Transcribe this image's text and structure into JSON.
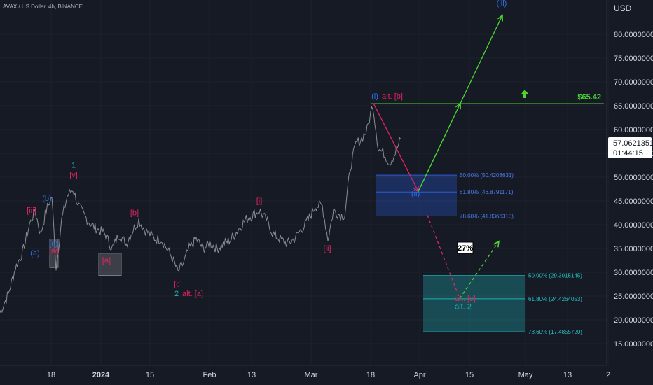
{
  "header": {
    "title": "AVAX / US Dollar, 4h, BINANCE"
  },
  "chart_data": {
    "type": "line",
    "currency_label": "USD",
    "ylim": [
      10,
      87
    ],
    "y_ticks": [
      "15.0000000",
      "20.0000000",
      "25.0000000",
      "30.0000000",
      "35.0000000",
      "40.0000000",
      "45.0000000",
      "50.0000000",
      "55.0000000",
      "60.0000000",
      "65.0000000",
      "70.0000000",
      "75.0000000",
      "80.0000000"
    ],
    "x_ticks": [
      "18",
      "2024",
      "15",
      "Feb",
      "13",
      "Mar",
      "18",
      "Apr",
      "15",
      "May",
      "13",
      "2"
    ],
    "current_price": {
      "value": 57.0621351,
      "label": "57.0621351",
      "countdown": "01:44:15"
    },
    "target_line": {
      "value": 65.42,
      "label": "$65.42",
      "color": "#4cd431"
    },
    "series": [
      {
        "type": "price",
        "color": "#8a8d96",
        "points": [
          [
            0,
            21.5
          ],
          [
            12,
            25.5
          ],
          [
            22,
            31
          ],
          [
            32,
            34
          ],
          [
            42,
            40
          ],
          [
            50,
            43
          ],
          [
            58,
            38
          ],
          [
            66,
            43
          ],
          [
            74,
            46
          ],
          [
            80,
            31
          ],
          [
            88,
            41
          ],
          [
            96,
            46
          ],
          [
            104,
            47.5
          ],
          [
            112,
            44
          ],
          [
            120,
            42
          ],
          [
            130,
            40
          ],
          [
            140,
            39
          ],
          [
            150,
            38
          ],
          [
            160,
            35
          ],
          [
            170,
            38
          ],
          [
            180,
            36
          ],
          [
            190,
            39
          ],
          [
            198,
            41
          ],
          [
            206,
            39
          ],
          [
            214,
            38
          ],
          [
            222,
            37
          ],
          [
            230,
            37
          ],
          [
            238,
            35
          ],
          [
            246,
            33
          ],
          [
            254,
            30
          ],
          [
            262,
            32
          ],
          [
            270,
            35
          ],
          [
            280,
            37
          ],
          [
            290,
            35
          ],
          [
            300,
            36
          ],
          [
            310,
            35
          ],
          [
            320,
            36
          ],
          [
            330,
            37
          ],
          [
            340,
            39
          ],
          [
            350,
            41
          ],
          [
            360,
            42
          ],
          [
            370,
            43
          ],
          [
            380,
            41
          ],
          [
            390,
            38
          ],
          [
            400,
            37
          ],
          [
            410,
            36
          ],
          [
            420,
            37
          ],
          [
            430,
            39
          ],
          [
            440,
            41
          ],
          [
            450,
            44
          ],
          [
            460,
            44
          ],
          [
            468,
            37
          ],
          [
            476,
            43
          ],
          [
            486,
            42
          ],
          [
            492,
            42
          ],
          [
            500,
            52
          ],
          [
            508,
            57
          ],
          [
            516,
            58
          ],
          [
            524,
            60
          ],
          [
            532,
            65.4
          ],
          [
            540,
            56
          ],
          [
            548,
            55
          ],
          [
            556,
            53
          ],
          [
            564,
            55
          ],
          [
            572,
            58
          ]
        ]
      }
    ],
    "wave_labels": [
      {
        "text": "(a)",
        "x": 50,
        "y": 33.5,
        "color": "#2d6ee6"
      },
      {
        "text": "[iii]",
        "x": 45,
        "y": 42.5,
        "color": "#e0245e"
      },
      {
        "text": "(b)",
        "x": 67,
        "y": 45,
        "color": "#2d6ee6"
      },
      {
        "text": "(c)",
        "x": 76,
        "y": 35.5,
        "color": "#2d6ee6"
      },
      {
        "text": "[iv]",
        "x": 77,
        "y": 34,
        "color": "#e0245e"
      },
      {
        "text": "1",
        "x": 105,
        "y": 52,
        "color": "#22b0b0"
      },
      {
        "text": "[v]",
        "x": 105,
        "y": 50,
        "color": "#e0245e"
      },
      {
        "text": "[a]",
        "x": 152,
        "y": 32,
        "color": "#e0245e"
      },
      {
        "text": "[b]",
        "x": 192,
        "y": 42,
        "color": "#e0245e"
      },
      {
        "text": "[c]",
        "x": 254,
        "y": 27,
        "color": "#e0245e"
      },
      {
        "text": "2",
        "x": 252,
        "y": 25,
        "color": "#22b0b0"
      },
      {
        "text": "alt. [a]",
        "x": 275,
        "y": 25,
        "color": "#e0245e"
      },
      {
        "text": "[i]",
        "x": 370,
        "y": 44.5,
        "color": "#e0245e"
      },
      {
        "text": "[ii]",
        "x": 467,
        "y": 34.5,
        "color": "#e0245e"
      },
      {
        "text": "(i)",
        "x": 535,
        "y": 66.5,
        "color": "#2d6ee6"
      },
      {
        "text": "alt. [b]",
        "x": 560,
        "y": 66.5,
        "color": "#e0245e"
      },
      {
        "text": "(ii)",
        "x": 593,
        "y": 46,
        "color": "#2d6ee6"
      },
      {
        "text": "(iii)",
        "x": 716,
        "y": 86,
        "color": "#2d6ee6"
      },
      {
        "text": "alt. [c]",
        "x": 664,
        "y": 24,
        "color": "#e0245e"
      },
      {
        "text": "alt. 2",
        "x": 661,
        "y": 22.3,
        "color": "#22b0b0"
      }
    ],
    "fib_zones": [
      {
        "color": "#2d5bd6",
        "levels": [
          {
            "value": 50.4208631,
            "label": "50.00% (50.4208631)"
          },
          {
            "value": 46.8791171,
            "label": "61.80% (46.8791171)"
          },
          {
            "value": 41.8366313,
            "label": "78.60% (41.8366313)"
          }
        ]
      },
      {
        "color": "#1fb3b3",
        "levels": [
          {
            "value": 29.3015145,
            "label": "50.00% (29.3015145)"
          },
          {
            "value": 24.4264053,
            "label": "61.80% (24.4264053)"
          },
          {
            "value": 17.485572,
            "label": "78.60% (17.4855720)"
          }
        ]
      }
    ],
    "boxes": [
      {
        "label": "[c]-box",
        "x0": 71,
        "x1": 83,
        "y0": 31,
        "y1": 37
      },
      {
        "label": "[a]-box",
        "x0": 141,
        "x1": 173,
        "y0": 29.3,
        "y1": 34
      }
    ],
    "projections": [
      {
        "from": [
          533,
          65.5
        ],
        "to": [
          597,
          47
        ],
        "color": "#e0245e",
        "dashed": false
      },
      {
        "from": [
          597,
          47
        ],
        "to": [
          717,
          84
        ],
        "color": "#4cd431",
        "dashed": false
      },
      {
        "from": [
          597,
          47
        ],
        "to": [
          657,
          65.5
        ],
        "color": "#4cd431",
        "dashed": true
      },
      {
        "from": [
          610,
          42
        ],
        "to": [
          656,
          24.5
        ],
        "color": "#e0245e",
        "dashed": true
      },
      {
        "from": [
          656,
          24.5
        ],
        "to": [
          712,
          36.5
        ],
        "color": "#4cd431",
        "dashed": true
      }
    ],
    "annotation_badge": {
      "text": "27%",
      "x": 664,
      "y": 35
    }
  }
}
